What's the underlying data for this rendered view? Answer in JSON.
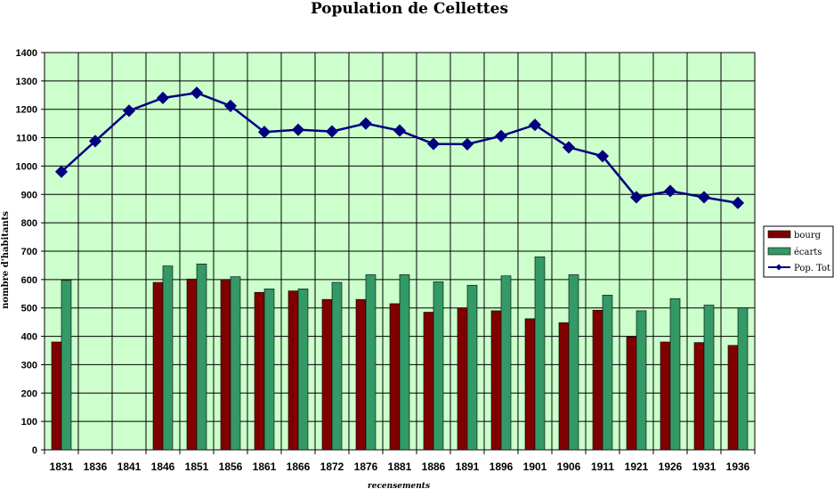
{
  "chart_data": {
    "type": "bar",
    "title": "Population de Cellettes",
    "xlabel": "recensements",
    "ylabel": "nombre d'habitants",
    "ylim": [
      0,
      1400
    ],
    "ytick_step": 100,
    "grid": true,
    "legend_position": "right",
    "categories": [
      "1831",
      "1836",
      "1841",
      "1846",
      "1851",
      "1856",
      "1861",
      "1866",
      "1872",
      "1876",
      "1881",
      "1886",
      "1891",
      "1896",
      "1901",
      "1906",
      "1911",
      "1921",
      "1926",
      "1931",
      "1936"
    ],
    "series": [
      {
        "name": "bourg",
        "kind": "bar",
        "color": "#800000",
        "values": [
          380,
          null,
          null,
          590,
          602,
          600,
          555,
          560,
          530,
          530,
          515,
          485,
          500,
          490,
          462,
          448,
          492,
          398,
          380,
          378,
          368
        ]
      },
      {
        "name": "écarts",
        "kind": "bar",
        "color": "#339966",
        "values": [
          597,
          null,
          null,
          648,
          655,
          610,
          567,
          567,
          590,
          617,
          617,
          592,
          580,
          613,
          680,
          617,
          545,
          490,
          533,
          510,
          500
        ]
      },
      {
        "name": "Pop. Tot",
        "kind": "line",
        "color": "#000080",
        "values": [
          980,
          1088,
          1195,
          1240,
          1258,
          1212,
          1120,
          1128,
          1122,
          1150,
          1125,
          1078,
          1077,
          1106,
          1145,
          1066,
          1035,
          890,
          912,
          890,
          870
        ]
      }
    ],
    "colors": {
      "plot_background": "#ccffcc",
      "grid": "#000000"
    }
  }
}
